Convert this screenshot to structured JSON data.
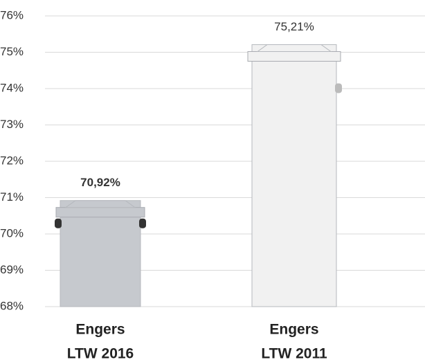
{
  "chart_data": {
    "type": "bar",
    "categories": [
      [
        "Engers",
        "LTW 2016"
      ],
      [
        "Engers",
        "LTW 2011"
      ]
    ],
    "values": [
      70.92,
      75.21
    ],
    "value_labels": [
      "70,92%",
      "75,21%"
    ],
    "colors": [
      "#c6c9ce",
      "#f1f1f1"
    ],
    "ylim": [
      68,
      76
    ],
    "yticks": [
      {
        "value": 68,
        "label": "68%"
      },
      {
        "value": 69,
        "label": "69%"
      },
      {
        "value": 70,
        "label": "70%"
      },
      {
        "value": 71,
        "label": "71%"
      },
      {
        "value": 72,
        "label": "72%"
      },
      {
        "value": 73,
        "label": "73%"
      },
      {
        "value": 74,
        "label": "74%"
      },
      {
        "value": 75,
        "label": "75%"
      },
      {
        "value": 76,
        "label": "76%"
      }
    ],
    "grid": true
  }
}
